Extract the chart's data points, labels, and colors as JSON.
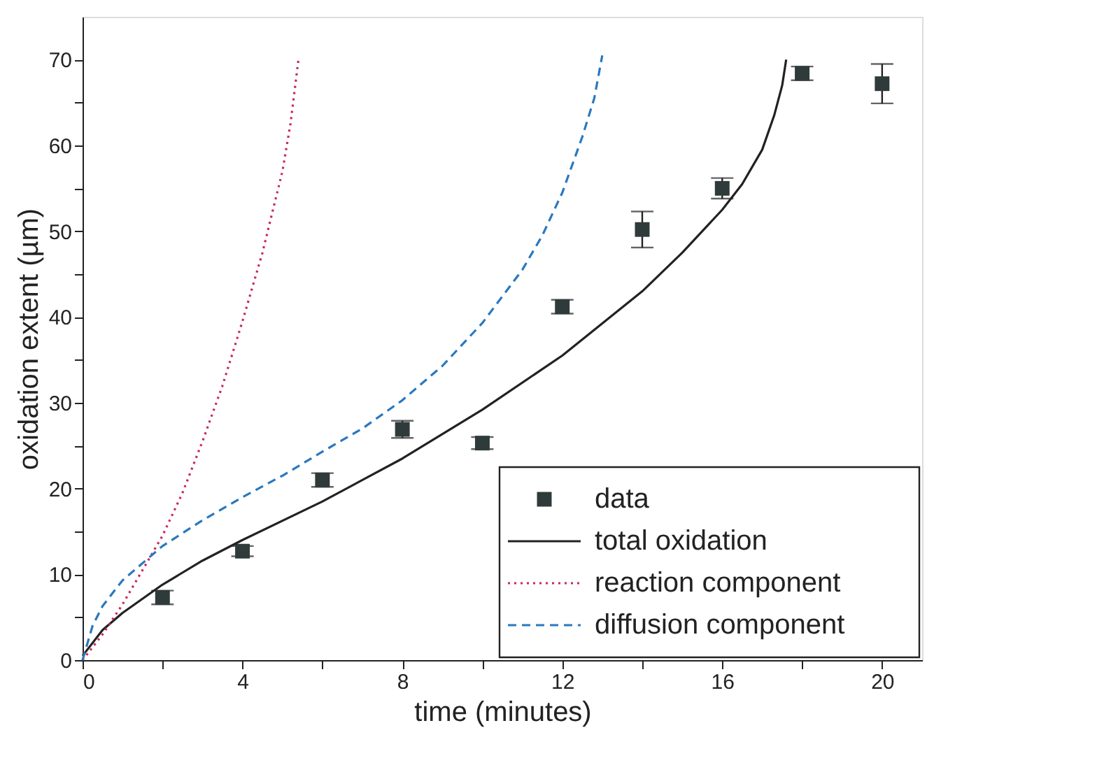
{
  "chart_data": {
    "type": "line",
    "xlabel": "time (minutes)",
    "ylabel": "oxidation extent (µm)",
    "xlim": [
      0,
      21
    ],
    "ylim": [
      0,
      75
    ],
    "xticks": [
      0,
      {
        "value": 2,
        "label": null
      },
      4,
      {
        "value": 6,
        "label": null
      },
      8,
      {
        "value": 10,
        "label": null
      },
      12,
      {
        "value": 14,
        "label": null
      },
      16,
      {
        "value": 18,
        "label": null
      },
      20
    ],
    "yticks": [
      0,
      {
        "value": 5,
        "label": null
      },
      10,
      {
        "value": 15,
        "label": null
      },
      20,
      {
        "value": 25,
        "label": null
      },
      30,
      {
        "value": 35,
        "label": null
      },
      40,
      {
        "value": 45,
        "label": null
      },
      50,
      {
        "value": 55,
        "label": null
      },
      60,
      {
        "value": 65,
        "label": null
      },
      70
    ],
    "grid": false,
    "legend": "bottom right",
    "series": [
      {
        "name": "data",
        "type": "scatter",
        "marker": "square",
        "color": "#2f3b3a",
        "x": [
          2,
          4,
          6,
          8,
          10,
          12,
          14,
          16,
          18,
          20
        ],
        "values": [
          7.3,
          12.7,
          21,
          26.9,
          25.3,
          41.2,
          50.2,
          55,
          68.4,
          67.2
        ],
        "errors": [
          0.8,
          0.6,
          0.8,
          1.0,
          0.7,
          0.8,
          2.1,
          1.2,
          0.8,
          2.3
        ]
      },
      {
        "name": "total oxidation",
        "line_style": "solid",
        "color": "#222222",
        "x": [
          0,
          0.5,
          1,
          2,
          3,
          4,
          6,
          8,
          10,
          12,
          14,
          15,
          16,
          16.5,
          17,
          17.3,
          17.5,
          17.6
        ],
        "values": [
          0.5,
          3.5,
          5.5,
          8.8,
          11.6,
          14,
          18.5,
          23.5,
          29.2,
          35.5,
          43,
          47.5,
          52.5,
          55.5,
          59.5,
          63.5,
          67,
          70
        ]
      },
      {
        "name": "reaction component",
        "line_style": "dotted",
        "color": "#c8285a",
        "x": [
          0,
          0.5,
          1,
          1.5,
          2,
          2.5,
          3,
          3.5,
          4,
          4.5,
          5,
          5.2,
          5.4
        ],
        "values": [
          0,
          3,
          6.5,
          10.5,
          14.5,
          19.5,
          25.5,
          32,
          39.5,
          47.5,
          57,
          62.5,
          70
        ]
      },
      {
        "name": "diffusion component",
        "line_style": "dashed",
        "color": "#2a78bf",
        "x": [
          0,
          0.25,
          0.5,
          1,
          2,
          3,
          4,
          5,
          6,
          7,
          8,
          9,
          10,
          11,
          11.5,
          12,
          12.5,
          12.8,
          13
        ],
        "values": [
          0,
          4,
          6.3,
          9.3,
          13.3,
          16.3,
          19,
          21.5,
          24.3,
          27,
          30.3,
          34.3,
          39.3,
          45.5,
          49.5,
          54.5,
          61,
          65.5,
          70.5
        ]
      }
    ]
  }
}
